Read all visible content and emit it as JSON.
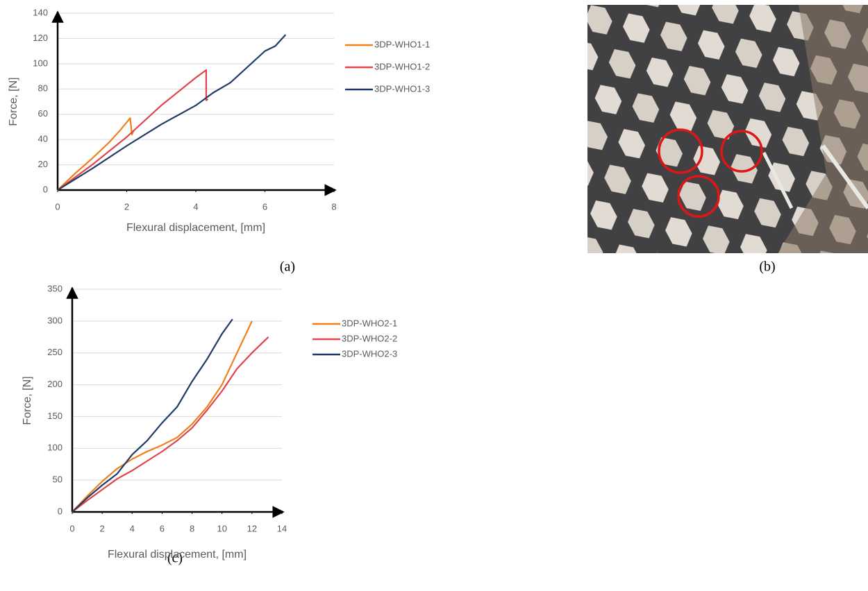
{
  "chart_data": [
    {
      "type": "line",
      "xlabel": "Flexural displacement, [mm]",
      "ylabel": "Force, [N]",
      "xlim": [
        0,
        8
      ],
      "xticks": [
        0,
        2,
        4,
        6,
        8
      ],
      "ylim": [
        0,
        140
      ],
      "yticks": [
        0,
        20,
        40,
        60,
        80,
        100,
        120,
        140
      ],
      "grid": true,
      "series": [
        {
          "name": "3DP-WHO1-1",
          "color": "#f07f1a",
          "x": [
            0,
            0.5,
            1,
            1.5,
            1.8,
            2.1,
            2.15,
            2.2
          ],
          "values": [
            0,
            13,
            25,
            38,
            47,
            57,
            44,
            47
          ]
        },
        {
          "name": "3DP-WHO1-2",
          "color": "#e0444a",
          "x": [
            0,
            1,
            2,
            3,
            3.5,
            4,
            4.3,
            4.3,
            4.35
          ],
          "values": [
            0,
            20,
            42,
            67,
            78,
            89,
            95,
            71,
            72
          ]
        },
        {
          "name": "3DP-WHO1-3",
          "color": "#1f3a68",
          "x": [
            0,
            1,
            2,
            3,
            4,
            4.5,
            5,
            6,
            6.3,
            6.6
          ],
          "values": [
            0,
            17,
            35,
            52,
            67,
            77,
            85,
            110,
            114,
            123
          ]
        }
      ]
    },
    {
      "type": "line",
      "xlabel": "Flexural displacement, [mm]",
      "ylabel": "Force, [N]",
      "xlim": [
        0,
        14
      ],
      "xticks": [
        0,
        2,
        4,
        6,
        8,
        10,
        12,
        14
      ],
      "ylim": [
        0,
        350
      ],
      "yticks": [
        0,
        50,
        100,
        150,
        200,
        250,
        300,
        350
      ],
      "grid": true,
      "series": [
        {
          "name": "3DP-WHO2-1",
          "color": "#f07f1a",
          "x": [
            0,
            1,
            2,
            3,
            4,
            5,
            6,
            7,
            8,
            9,
            10,
            11,
            12
          ],
          "values": [
            0,
            25,
            48,
            68,
            83,
            95,
            105,
            117,
            138,
            165,
            200,
            250,
            300
          ]
        },
        {
          "name": "3DP-WHO2-2",
          "color": "#e0444a",
          "x": [
            0,
            1,
            2,
            3,
            4,
            5,
            6,
            7,
            8,
            9,
            10,
            11,
            12,
            13.1
          ],
          "values": [
            0,
            18,
            35,
            52,
            65,
            80,
            95,
            112,
            132,
            160,
            190,
            225,
            250,
            275
          ]
        },
        {
          "name": "3DP-WHO2-3",
          "color": "#1f3a68",
          "x": [
            0,
            1,
            2,
            3,
            4,
            5,
            6,
            7,
            8,
            9,
            10,
            10.7
          ],
          "values": [
            0,
            22,
            42,
            60,
            90,
            112,
            140,
            165,
            205,
            240,
            280,
            303
          ]
        }
      ]
    }
  ],
  "panel_labels": [
    "(a)",
    "(b)",
    "(c)"
  ]
}
